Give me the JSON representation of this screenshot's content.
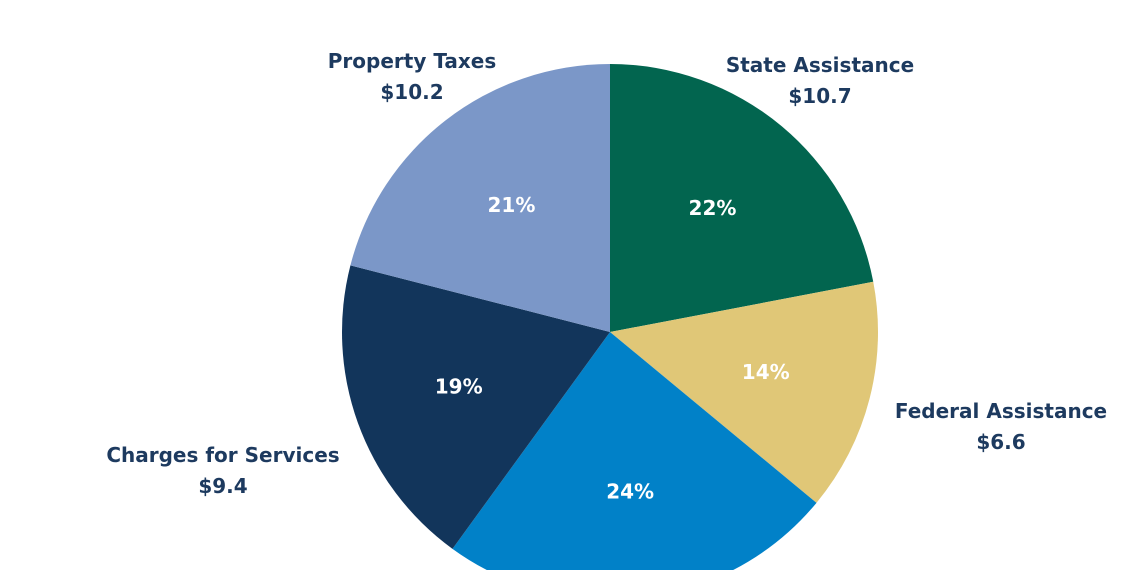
{
  "chart_data": {
    "type": "pie",
    "start": "top",
    "direction": "clockwise",
    "slices": [
      {
        "name": "State Assistance",
        "value_label": "$10.7",
        "value": 10.7,
        "percent": 22,
        "color": "#02654f"
      },
      {
        "name": "Federal Assistance",
        "value_label": "$6.6",
        "value": 6.6,
        "percent": 14,
        "color": "#e0c777"
      },
      {
        "percent": 24,
        "color": "#0181c8"
      },
      {
        "name": "Charges for Services",
        "value_label": "$9.4",
        "value": 9.4,
        "percent": 19,
        "color": "#12355b"
      },
      {
        "name": "Property Taxes",
        "value_label": "$10.2",
        "value": 10.2,
        "percent": 21,
        "color": "#7b97c8"
      }
    ]
  }
}
